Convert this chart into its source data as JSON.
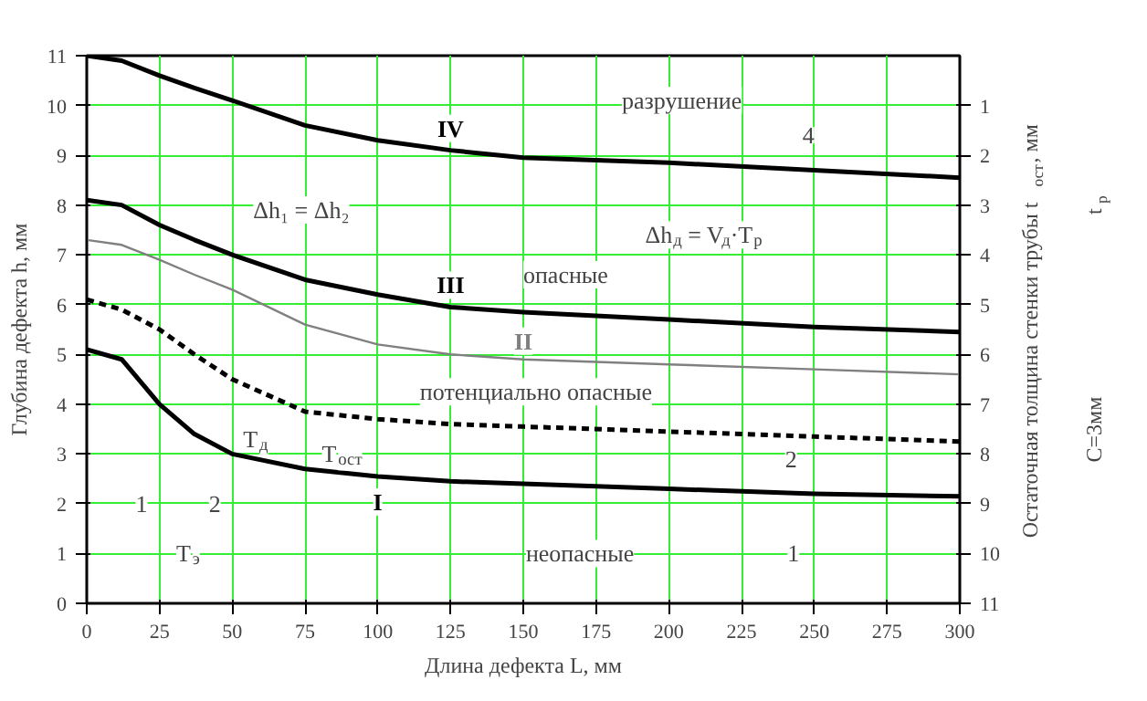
{
  "chart_data": {
    "type": "line",
    "xlabel": "Длина дефекта L, мм",
    "ylabel": "Глубина дефекта h, мм",
    "y2label": "Остаточная толщина стенки трубы t$_{ост}$, мм",
    "x": [
      0,
      12,
      25,
      37,
      50,
      75,
      100,
      125,
      150,
      200,
      250,
      300
    ],
    "series": [
      {
        "name": "I",
        "color": "#000000",
        "line_style": "solid",
        "values": [
          5.1,
          4.9,
          4.0,
          3.4,
          3.0,
          2.7,
          2.55,
          2.45,
          2.4,
          2.3,
          2.2,
          2.15
        ]
      },
      {
        "color": "#000000",
        "line_style": "dashed",
        "values": [
          6.1,
          5.9,
          5.5,
          5.0,
          4.5,
          3.85,
          3.7,
          3.6,
          3.55,
          3.45,
          3.35,
          3.25
        ]
      },
      {
        "name": "II",
        "color": "#808080",
        "line_style": "solid",
        "values": [
          7.3,
          7.2,
          6.9,
          6.6,
          6.3,
          5.6,
          5.2,
          5.0,
          4.9,
          4.8,
          4.7,
          4.6
        ]
      },
      {
        "name": "III",
        "color": "#000000",
        "line_style": "solid",
        "values": [
          8.1,
          8.0,
          7.6,
          7.3,
          7.0,
          6.5,
          6.2,
          5.95,
          5.85,
          5.7,
          5.55,
          5.45
        ]
      },
      {
        "name": "IV",
        "color": "#000000",
        "line_style": "solid",
        "values": [
          11,
          10.9,
          10.6,
          10.35,
          10.1,
          9.6,
          9.3,
          9.1,
          8.95,
          8.85,
          8.7,
          8.55
        ]
      }
    ],
    "xlim": [
      0,
      300
    ],
    "xticks": [
      0,
      25,
      50,
      75,
      100,
      125,
      150,
      175,
      200,
      225,
      250,
      275,
      300
    ],
    "ylim": [
      0,
      11
    ],
    "yticks": [
      0,
      1,
      2,
      3,
      4,
      5,
      6,
      7,
      8,
      9,
      10,
      11
    ],
    "y2lim": [
      11,
      0
    ],
    "y2ticks": [
      1,
      2,
      3,
      4,
      5,
      6,
      7,
      8,
      9,
      10,
      11
    ],
    "grid": true,
    "marker": "none",
    "annotations": [
      "разрушение",
      "4",
      "опасные",
      "потенциально опасные",
      "неопасные",
      "1",
      "2",
      "Δh₁ = Δh₂",
      "Δh$_{д}$ = V$_{д}$·T$_{р}$",
      "T$_{э}$",
      "1",
      "2",
      "T$_{д}$",
      "T$_{ост}$",
      "t$_{р}$",
      "C=3мм"
    ]
  }
}
